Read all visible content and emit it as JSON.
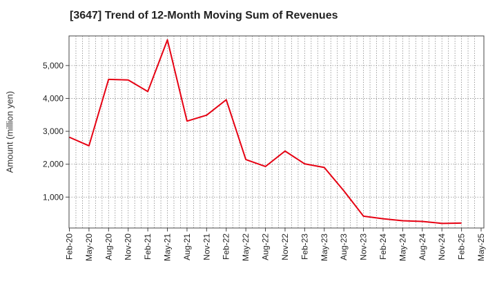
{
  "chart_data": {
    "type": "line",
    "title": "[3647]  Trend of 12-Month Moving Sum of Revenues",
    "xlabel": "",
    "ylabel": "Amount (million yen)",
    "ylim": [
      60,
      5900
    ],
    "yticks": [
      1000,
      2000,
      3000,
      4000,
      5000
    ],
    "ytick_labels": [
      "1,000",
      "2,000",
      "3,000",
      "4,000",
      "5,000"
    ],
    "x_tick_labels": [
      "Feb-20",
      "May-20",
      "Aug-20",
      "Nov-20",
      "Feb-21",
      "May-21",
      "Aug-21",
      "Nov-21",
      "Feb-22",
      "May-22",
      "Aug-22",
      "Nov-22",
      "Feb-23",
      "May-23",
      "Aug-23",
      "Nov-23",
      "Feb-24",
      "May-24",
      "Aug-24",
      "Nov-24",
      "Feb-25",
      "May-25"
    ],
    "grid": true,
    "line_color": "#e60012",
    "series": [
      {
        "x": [
          "Feb-20",
          "May-20",
          "Aug-20",
          "Nov-20",
          "Feb-21",
          "May-21",
          "Aug-21",
          "Nov-21",
          "Feb-22",
          "May-22",
          "Aug-22",
          "Nov-22",
          "Feb-23",
          "May-23",
          "Aug-23",
          "Nov-23",
          "Feb-24",
          "May-24",
          "Aug-24",
          "Nov-24",
          "Feb-25"
        ],
        "values": [
          2820,
          2560,
          4580,
          4560,
          4210,
          5780,
          3310,
          3490,
          3960,
          2140,
          1930,
          2400,
          2010,
          1900,
          1190,
          420,
          340,
          280,
          260,
          200,
          210
        ]
      }
    ]
  }
}
